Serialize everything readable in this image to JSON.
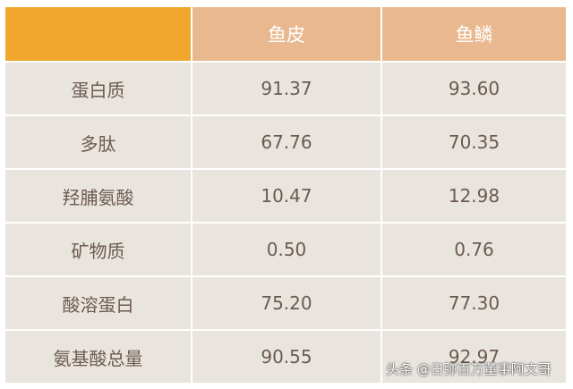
{
  "table": {
    "headers": [
      "",
      "鱼皮",
      "鱼鳞"
    ],
    "rows": [
      {
        "label": "蛋白质",
        "fish_skin": "91.37",
        "fish_scale": "93.60"
      },
      {
        "label": "多肽",
        "fish_skin": "67.76",
        "fish_scale": "70.35"
      },
      {
        "label": "羟脯氨酸",
        "fish_skin": "10.47",
        "fish_scale": "12.98"
      },
      {
        "label": "矿物质",
        "fish_skin": "0.50",
        "fish_scale": "0.76"
      },
      {
        "label": "酸溶蛋白",
        "fish_skin": "75.20",
        "fish_scale": "77.30"
      },
      {
        "label": "氨基酸总量",
        "fish_skin": "90.55",
        "fish_scale": "92.97"
      }
    ]
  },
  "watermark": "头条 @日弥百万董事阿文哥",
  "colors": {
    "corner": "#f0a72c",
    "header": "#e9b88e",
    "body": "#e9e5de",
    "text": "#6b5a52"
  }
}
